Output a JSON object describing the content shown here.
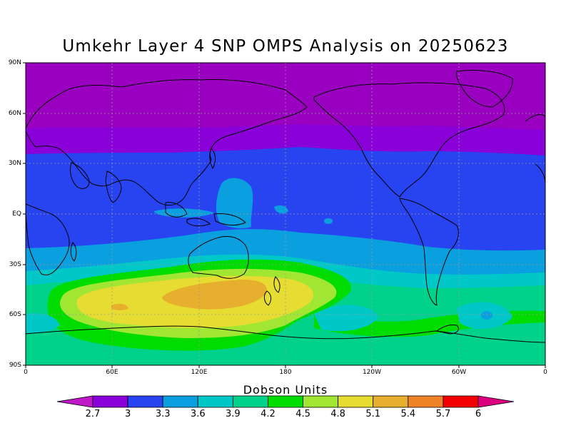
{
  "title": "Umkehr Layer 4 SNP OMPS Analysis on 20250623",
  "y_ticks": [
    "90N",
    "60N",
    "30N",
    "EQ",
    "30S",
    "60S",
    "90S"
  ],
  "x_ticks": [
    "0",
    "60E",
    "120E",
    "180",
    "120W",
    "60W",
    "0"
  ],
  "colorbar": {
    "title": "Dobson Units",
    "labels": [
      "2.7",
      "3",
      "3.3",
      "3.6",
      "3.9",
      "4.2",
      "4.5",
      "4.8",
      "5.1",
      "5.4",
      "5.7",
      "6"
    ],
    "colors": [
      "#c018c8",
      "#8a00d8",
      "#2844f0",
      "#0aa0e0",
      "#00c8c8",
      "#00d28c",
      "#00dc00",
      "#a0e632",
      "#e6dc32",
      "#e6af2d",
      "#f08228",
      "#f00000",
      "#dc0080"
    ]
  }
}
